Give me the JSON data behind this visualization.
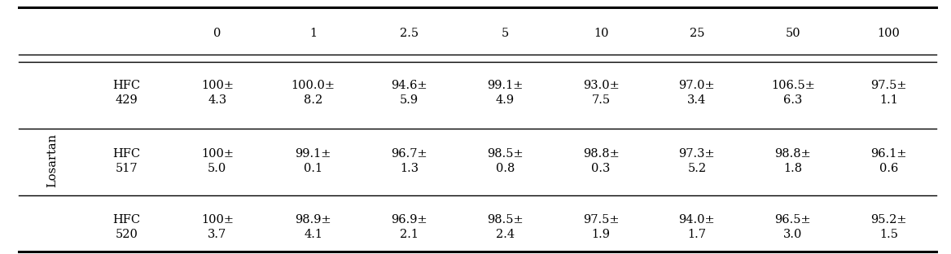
{
  "col_headers": [
    "0",
    "1",
    "2.5",
    "5",
    "10",
    "25",
    "50",
    "100"
  ],
  "row_label": "Losartan",
  "rows": [
    {
      "group": "HFC\n429",
      "values": [
        "100±\n4.3",
        "100.0±\n8.2",
        "94.6±\n5.9",
        "99.1±\n4.9",
        "93.0±\n7.5",
        "97.0±\n3.4",
        "106.5±\n6.3",
        "97.5±\n1.1"
      ]
    },
    {
      "group": "HFC\n517",
      "values": [
        "100±\n5.0",
        "99.1±\n0.1",
        "96.7±\n1.3",
        "98.5±\n0.8",
        "98.8±\n0.3",
        "97.3±\n5.2",
        "98.8±\n1.8",
        "96.1±\n0.6"
      ]
    },
    {
      "group": "HFC\n520",
      "values": [
        "100±\n3.7",
        "98.9±\n4.1",
        "96.9±\n2.1",
        "98.5±\n2.4",
        "97.5±\n1.9",
        "94.0±\n1.7",
        "96.5±\n3.0",
        "95.2±\n1.5"
      ]
    }
  ],
  "figsize": [
    11.68,
    3.12
  ],
  "dpi": 100,
  "font_size": 10.5
}
